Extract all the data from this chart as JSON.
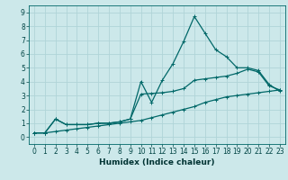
{
  "xlabel": "Humidex (Indice chaleur)",
  "xlim": [
    -0.5,
    23.5
  ],
  "ylim": [
    -0.5,
    9.5
  ],
  "xticks": [
    0,
    1,
    2,
    3,
    4,
    5,
    6,
    7,
    8,
    9,
    10,
    11,
    12,
    13,
    14,
    15,
    16,
    17,
    18,
    19,
    20,
    21,
    22,
    23
  ],
  "yticks": [
    0,
    1,
    2,
    3,
    4,
    5,
    6,
    7,
    8,
    9
  ],
  "bg_color": "#cce8ea",
  "grid_color": "#b0d4d8",
  "line_color": "#006868",
  "series1_x": [
    0,
    1,
    2,
    3,
    4,
    5,
    6,
    7,
    8,
    9,
    10,
    11,
    12,
    13,
    14,
    15,
    16,
    17,
    18,
    19,
    20,
    21,
    22,
    23
  ],
  "series1_y": [
    0.3,
    0.3,
    1.3,
    0.9,
    0.9,
    0.9,
    1.0,
    1.0,
    1.1,
    1.3,
    4.0,
    2.5,
    4.1,
    5.3,
    6.9,
    8.7,
    7.5,
    6.3,
    5.8,
    5.0,
    5.0,
    4.8,
    3.8,
    3.3
  ],
  "series2_x": [
    0,
    1,
    2,
    3,
    4,
    5,
    6,
    7,
    8,
    9,
    10,
    11,
    12,
    13,
    14,
    15,
    16,
    17,
    18,
    19,
    20,
    21,
    22,
    23
  ],
  "series2_y": [
    0.3,
    0.3,
    1.3,
    0.9,
    0.9,
    0.9,
    1.0,
    1.0,
    1.1,
    1.3,
    3.1,
    3.15,
    3.2,
    3.3,
    3.5,
    4.1,
    4.2,
    4.3,
    4.4,
    4.6,
    4.9,
    4.7,
    3.7,
    3.4
  ],
  "series3_x": [
    0,
    1,
    2,
    3,
    4,
    5,
    6,
    7,
    8,
    9,
    10,
    11,
    12,
    13,
    14,
    15,
    16,
    17,
    18,
    19,
    20,
    21,
    22,
    23
  ],
  "series3_y": [
    0.3,
    0.3,
    0.4,
    0.5,
    0.6,
    0.7,
    0.8,
    0.9,
    1.0,
    1.1,
    1.2,
    1.4,
    1.6,
    1.8,
    2.0,
    2.2,
    2.5,
    2.7,
    2.9,
    3.0,
    3.1,
    3.2,
    3.3,
    3.4
  ],
  "marker": "+",
  "markersize": 3,
  "linewidth": 0.9,
  "tick_fontsize": 5.5,
  "xlabel_fontsize": 6.5
}
